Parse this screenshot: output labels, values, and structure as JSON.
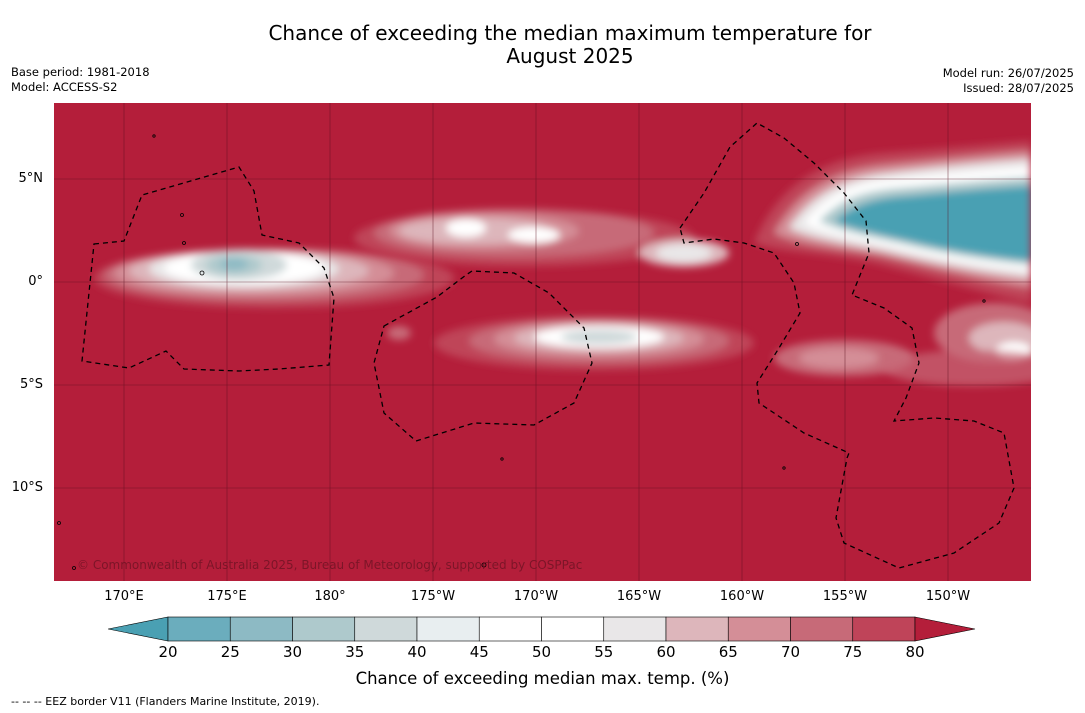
{
  "title": {
    "line1": "Chance of exceeding the median maximum temperature for",
    "line2": "August 2025"
  },
  "meta": {
    "base_period": "Base period: 1981-2018",
    "model": "Model: ACCESS-S2",
    "model_run": "Model run: 26/07/2025",
    "issued": "Issued: 28/07/2025"
  },
  "map": {
    "lat_labels": [
      "5°N",
      "0°",
      "5°S",
      "10°S"
    ],
    "lon_labels": [
      "170°E",
      "175°E",
      "180°",
      "175°W",
      "170°W",
      "165°W",
      "160°W",
      "155°W",
      "150°W"
    ],
    "copyright": "© Commonwealth of Australia 2025, Bureau of Meteorology, supported by COSPPac",
    "background_color": "#b41e3a"
  },
  "colorbar": {
    "ticks": [
      "20",
      "25",
      "30",
      "35",
      "40",
      "45",
      "50",
      "55",
      "60",
      "65",
      "70",
      "75",
      "80"
    ],
    "colors": [
      "#4aa0b3",
      "#6badbd",
      "#8dbac4",
      "#aec9cc",
      "#cfd9da",
      "#e8eef0",
      "#ffffff",
      "#ffffff",
      "#e9e7e8",
      "#ddb6bb",
      "#d48e97",
      "#c76a78",
      "#bf4459",
      "#b41e3a"
    ],
    "label": "Chance of exceeding median max. temp. (%)"
  },
  "eez_note": "-- -- -- EEZ border V11 (Flanders Marine Institute, 2019)."
}
